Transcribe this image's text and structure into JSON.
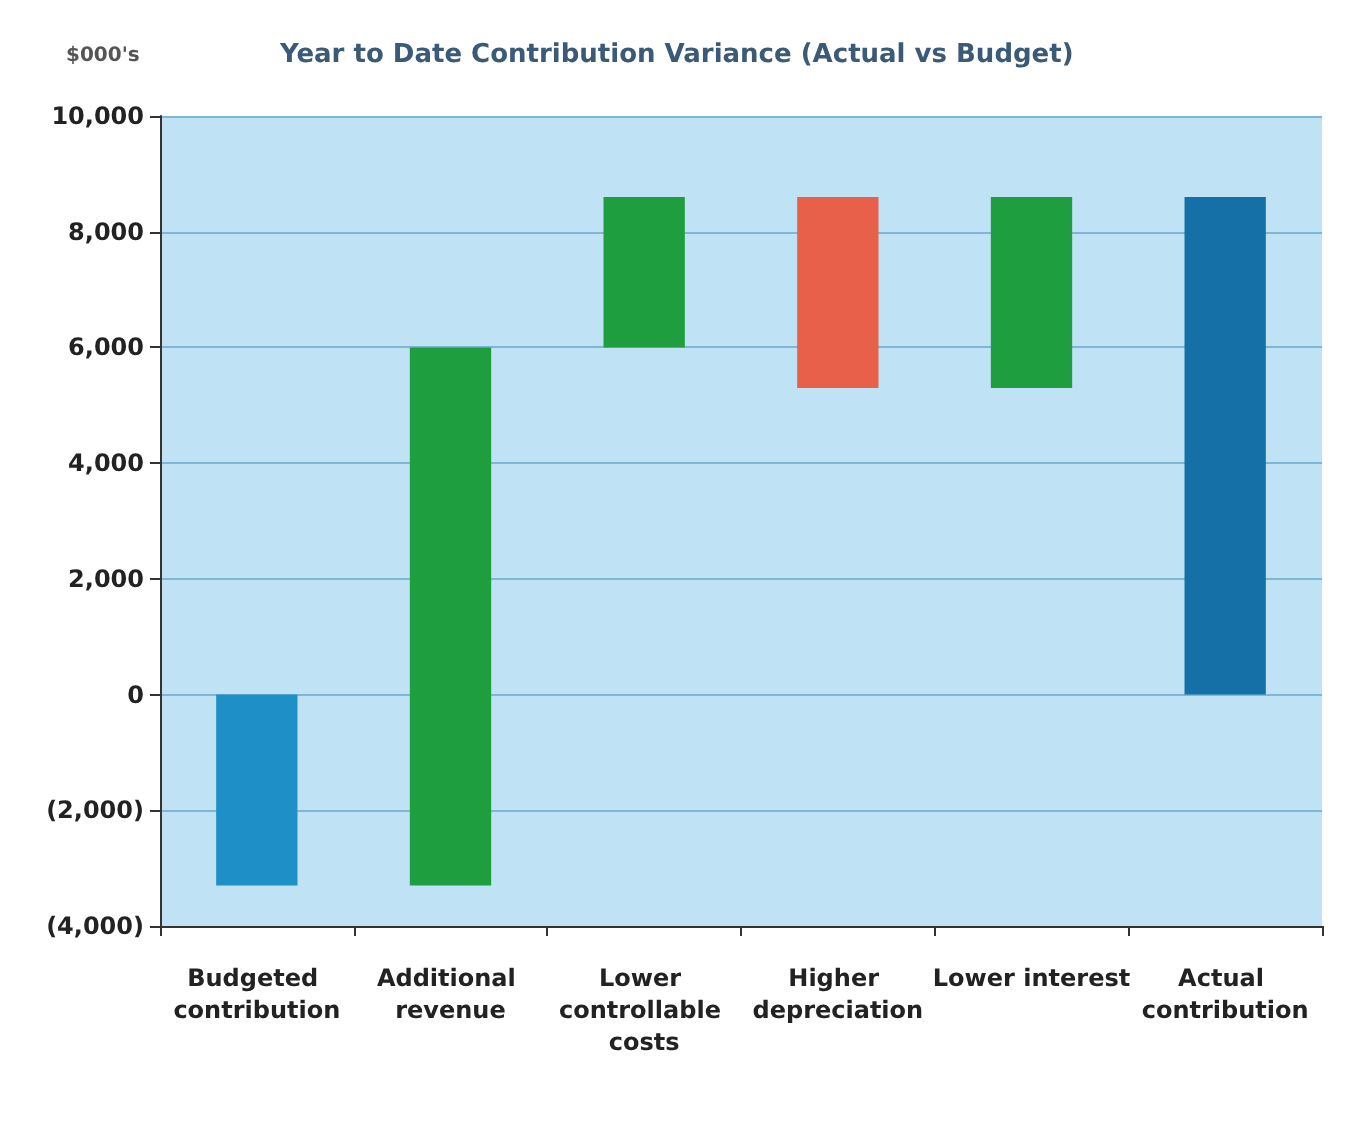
{
  "chart_data": {
    "type": "bar",
    "title": "Year to Date Contribution Variance (Actual vs Budget)",
    "ylabel": "$000's",
    "categories": [
      "Budgeted contribution",
      "Additional revenue",
      "Lower controllable costs",
      "Higher depreciation",
      "Lower interest",
      "Actual contribution"
    ],
    "values": [
      -3300,
      9300,
      2600,
      -3300,
      3300,
      8600
    ],
    "base": [
      0,
      -3300,
      6000,
      8600,
      5300,
      0
    ],
    "colors": [
      "#1f8fc8",
      "#1e9e3e",
      "#1e9e3e",
      "#e8604a",
      "#1e9e3e",
      "#1670a8"
    ],
    "ylim": [
      -4000,
      10000
    ],
    "yticks": [
      {
        "value": -4000,
        "label": "(4,000)"
      },
      {
        "value": -2000,
        "label": "(2,000)"
      },
      0,
      {
        "value": 2000,
        "label": "2,000"
      },
      {
        "value": 4000,
        "label": "4,000"
      },
      {
        "value": 6000,
        "label": "6,000"
      },
      {
        "value": 8000,
        "label": "8,000"
      },
      {
        "value": 10000,
        "label": "10,000"
      }
    ],
    "grid": "y"
  }
}
